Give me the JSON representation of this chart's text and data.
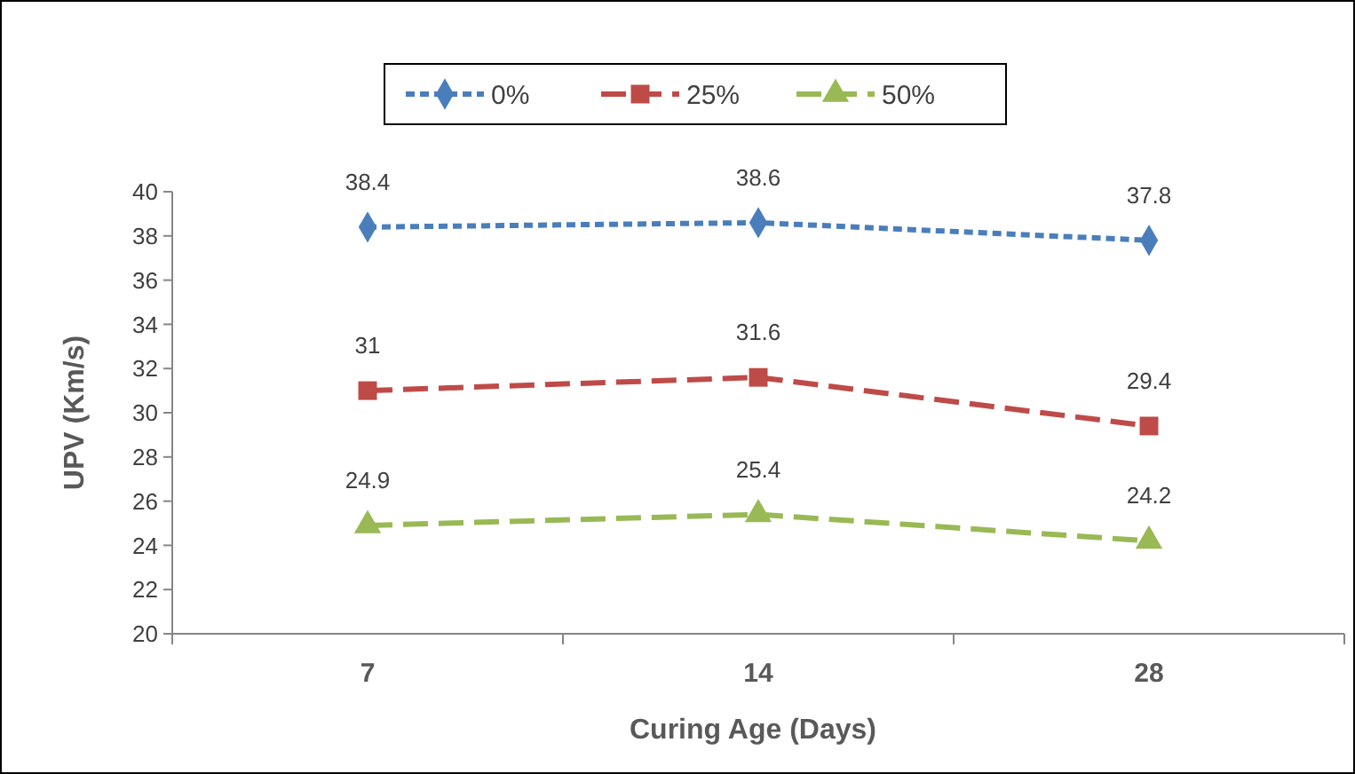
{
  "chart_data": {
    "type": "line",
    "xlabel": "Curing Age (Days)",
    "ylabel": "UPV (Km/s)",
    "categories": [
      "7",
      "14",
      "28"
    ],
    "series": [
      {
        "name": "0%",
        "color": "#4a7ebb",
        "values": [
          38.4,
          38.6,
          37.8
        ],
        "marker": "diamond",
        "line_style": "dotted"
      },
      {
        "name": "25%",
        "color": "#be4b48",
        "values": [
          31,
          31.6,
          29.4
        ],
        "marker": "square",
        "line_style": "dashed"
      },
      {
        "name": "50%",
        "color": "#98b954",
        "values": [
          24.9,
          25.4,
          24.2
        ],
        "marker": "triangle",
        "line_style": "dashed"
      }
    ],
    "ylim": [
      20,
      40
    ],
    "yticks": [
      20,
      22,
      24,
      26,
      28,
      30,
      32,
      34,
      36,
      38,
      40
    ],
    "data_labels": true,
    "legend": "top",
    "grid": false
  }
}
